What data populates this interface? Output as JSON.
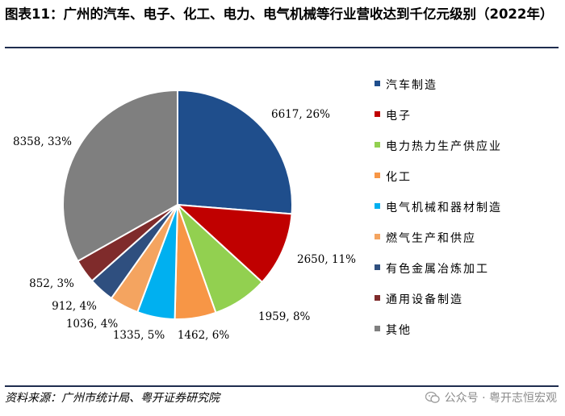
{
  "title": "图表11：广州的汽车、电子、化工、电力、电气机械等行业营收达到千亿元级别（2022年）",
  "source": "资料来源：广州市统计局、粤开证券研究院",
  "watermark": "公众号 · 粤开志恒宏观",
  "chart_data": {
    "type": "pie",
    "unit_note": "",
    "slices": [
      {
        "name": "汽车制造",
        "value": 6617,
        "percent": "26%",
        "color": "#1f4e8c"
      },
      {
        "name": "电子",
        "value": 2650,
        "percent": "11%",
        "color": "#c00000"
      },
      {
        "name": "电力热力生产供应业",
        "value": 1959,
        "percent": "8%",
        "color": "#92d050"
      },
      {
        "name": "化工",
        "value": 1462,
        "percent": "6%",
        "color": "#f79646"
      },
      {
        "name": "电气机械和器材制造",
        "value": 1335,
        "percent": "5%",
        "color": "#00b0f0"
      },
      {
        "name": "燃气生产和供应",
        "value": 1036,
        "percent": "4%",
        "color": "#f4a460"
      },
      {
        "name": "有色金属冶炼加工",
        "value": 912,
        "percent": "4%",
        "color": "#2f4f7f"
      },
      {
        "name": "通用设备制造",
        "value": 852,
        "percent": "3%",
        "color": "#7f2b2b"
      },
      {
        "name": "其他",
        "value": 8358,
        "percent": "33%",
        "color": "#7f7f7f"
      }
    ],
    "data_labels": [
      "6617, 26%",
      "2650, 11%",
      "1959, 8%",
      "1462, 6%",
      "1335, 5%",
      "1036, 4%",
      "912, 4%",
      "852, 3%",
      "8358, 33%"
    ],
    "legend_position": "right"
  }
}
